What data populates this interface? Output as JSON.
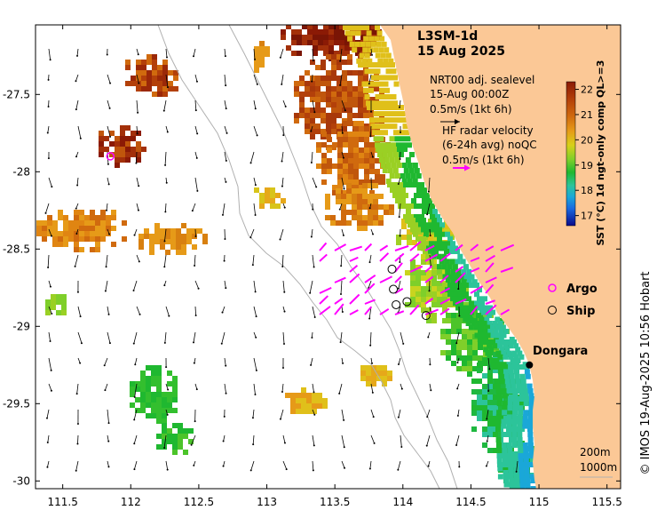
{
  "title": {
    "product": "L3SM-1d",
    "date": "15 Aug 2025"
  },
  "sealevel": {
    "line1": "NRT00 adj. sealevel",
    "line2": "15-Aug 00:00Z",
    "scale": "0.5m/s (1kt 6h)"
  },
  "hf_radar": {
    "line1": "HF radar velocity",
    "line2": "(6-24h avg) noQC",
    "scale": "0.5m/s (1kt 6h)",
    "color": "#ff00ff"
  },
  "colorbar": {
    "label": "SST (°C) 1d ngt-only comp QL>=3",
    "ticks": [
      "22",
      "21",
      "20",
      "19",
      "18",
      "17"
    ],
    "range": [
      16.6,
      22.3
    ]
  },
  "legend": {
    "argo": "Argo",
    "ship": "Ship",
    "argo_color": "#ff00ff"
  },
  "place": {
    "name": "Dongara",
    "lon": 114.93,
    "lat": -29.25
  },
  "isobaths": {
    "shallow": "200m",
    "deep": "1000m"
  },
  "credit": "© IMOS 19-Aug-2025 10:56 Hobart",
  "axes": {
    "x_ticks": [
      "111.5",
      "112",
      "112.5",
      "113",
      "113.5",
      "114",
      "114.5",
      "115",
      "115.5"
    ],
    "y_ticks": [
      "-27.5",
      "-28",
      "-28.5",
      "-29",
      "-29.5",
      "-30"
    ],
    "xlim": [
      111.3,
      115.6
    ],
    "ylim": [
      -30.05,
      -27.05
    ]
  },
  "markers": {
    "argo": [
      {
        "lon": 111.85,
        "lat": -27.9
      }
    ],
    "ship": [
      {
        "lon": 113.92,
        "lat": -28.63
      },
      {
        "lon": 113.95,
        "lat": -28.86
      },
      {
        "lon": 114.03,
        "lat": -28.84
      },
      {
        "lon": 114.17,
        "lat": -28.93
      },
      {
        "lon": 113.93,
        "lat": -28.76
      }
    ]
  },
  "land_color": "#fbc896"
}
